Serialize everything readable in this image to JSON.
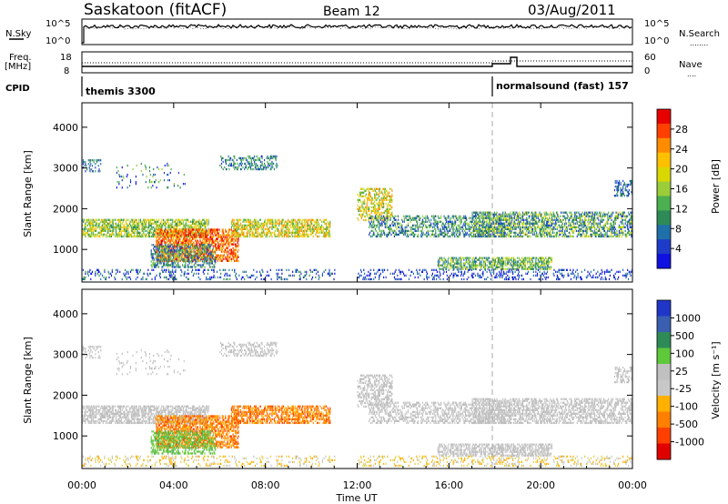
{
  "header": {
    "station": "Saskatoon (fitACF)",
    "beam": "Beam 12",
    "date": "03/Aug/2011"
  },
  "nsky_panel": {
    "left_label": "N.Sky",
    "left_ticks": [
      "10^5",
      "10^0"
    ],
    "right_ticks": [
      "10^5",
      "10^0"
    ],
    "right_label": "N.Search",
    "right_legend": "........"
  },
  "freq_panel": {
    "left_label_1": "Freq.",
    "left_label_2": "[MHz]",
    "left_ticks": [
      "18",
      "8"
    ],
    "right_ticks": [
      "60",
      "0"
    ],
    "right_label": "Nave",
    "right_legend": "...."
  },
  "cpid": {
    "label": "CPID",
    "modes": [
      {
        "name": "themis 3300",
        "start_h": 0
      },
      {
        "name": "normalsound (fast) 157",
        "start_h": 18.05
      }
    ]
  },
  "time_axis": {
    "label": "Time UT",
    "ticks": [
      "00:00",
      "04:00",
      "08:00",
      "12:00",
      "16:00",
      "20:00",
      "00:00"
    ]
  },
  "chart_data": [
    {
      "type": "heatmap",
      "name": "power",
      "ylabel": "Slant Range [km]",
      "yticks": [
        1000,
        2000,
        3000,
        4000
      ],
      "ylim": [
        200,
        4600
      ],
      "xlim": [
        0,
        24
      ],
      "colorbar": {
        "label": "Power [dB]",
        "ticks": [
          "28",
          "24",
          "20",
          "16",
          "12",
          "8",
          "4"
        ],
        "colors": [
          "#e60000",
          "#ff4000",
          "#ff8c00",
          "#ffc000",
          "#d8d800",
          "#9bcd3a",
          "#4caf50",
          "#2e8b57",
          "#1f6fa8",
          "#1e3cc8",
          "#1010e0"
        ]
      }
    },
    {
      "type": "heatmap",
      "name": "velocity",
      "ylabel": "Slant Range [km]",
      "yticks": [
        1000,
        2000,
        3000,
        4000
      ],
      "ylim": [
        200,
        4600
      ],
      "xlim": [
        0,
        24
      ],
      "colorbar": {
        "label": "Velocity [m s⁻¹]",
        "ticks": [
          "1000",
          "500",
          "100",
          "25",
          "-25",
          "-100",
          "-500",
          "-1000"
        ],
        "colors": [
          "#2036c8",
          "#3a5fb0",
          "#2e8b57",
          "#5ec83a",
          "#c0c0c0",
          "#c8c8c8",
          "#ffb000",
          "#ff8000",
          "#ff4000",
          "#e00000"
        ]
      }
    }
  ]
}
